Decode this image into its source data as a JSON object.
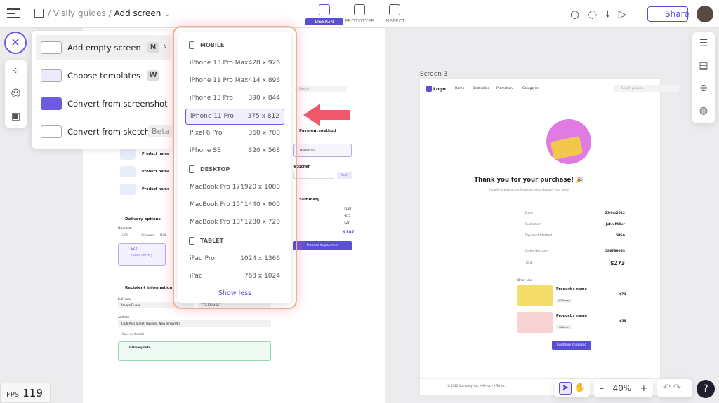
{
  "topbar": {
    "breadcrumb": [
      "Visily guides",
      "Add screen"
    ],
    "tabs": [
      {
        "label": "DESIGN",
        "active": true
      },
      {
        "label": "PROTOTYPE",
        "active": false
      },
      {
        "label": "INSPECT",
        "active": false
      }
    ],
    "share": "Share"
  },
  "add_menu": [
    {
      "label": "Add empty screen",
      "shortcut": "N",
      "highlighted": true
    },
    {
      "label": "Choose templates",
      "shortcut": "W"
    },
    {
      "label": "Convert from screenshot"
    },
    {
      "label": "Convert from sketch",
      "badge": "Beta"
    }
  ],
  "device_menu": {
    "sections": [
      {
        "title": "MOBILE",
        "items": [
          {
            "name": "iPhone 13 Pro Max",
            "size": "428 x 926"
          },
          {
            "name": "iPhone 11 Pro Max",
            "size": "414 x 896"
          },
          {
            "name": "iPhone 13 Pro",
            "size": "390 x 844"
          },
          {
            "name": "iPhone 11 Pro",
            "size": "375 x 812",
            "selected": true
          },
          {
            "name": "Pixel 6 Pro",
            "size": "360 x 780"
          },
          {
            "name": "iPhone SE",
            "size": "320 x 568"
          }
        ]
      },
      {
        "title": "DESKTOP",
        "items": [
          {
            "name": "MacBook Pro 17\"",
            "size": "1920 x 1080"
          },
          {
            "name": "MacBook Pro 15\"",
            "size": "1440 x 900"
          },
          {
            "name": "MacBook Pro 13\"",
            "size": "1280 x 720"
          }
        ]
      },
      {
        "title": "TABLET",
        "items": [
          {
            "name": "iPad Pro",
            "size": "1024 x 1366"
          },
          {
            "name": "iPad",
            "size": "768 x 1024"
          }
        ]
      }
    ],
    "toggle": "Show less"
  },
  "fps": {
    "label": "FPS",
    "value": "119"
  },
  "zoom": "40%",
  "left_screen": {
    "products": [
      "Product name",
      "Product name",
      "Product name"
    ],
    "delivery_title": "Delivery options",
    "operator": "Operator",
    "carriers": [
      "UPS",
      "Amazon",
      "DHL"
    ],
    "price": "$22",
    "speed": "Instant delivery",
    "recipient_title": "Recipient information",
    "full_name": "Full name",
    "name_value": "Amaya Dunne",
    "phone": "732-123-4567",
    "address": "Address",
    "address_value": "4706 Pass Street, Bayville, New Jersey(NJ)",
    "save": "Save as default",
    "note": "Delivery note"
  },
  "mid_screen": {
    "search": "Search",
    "payment": "Payment method",
    "card": "Mastercard",
    "voucher": "Voucher",
    "apply": "Apply",
    "summary": "Summary",
    "amounts": [
      "$180",
      "-$15",
      "$22"
    ],
    "total": "$187",
    "cta": "Proceed to payment"
  },
  "screen3": {
    "label": "Screen 3",
    "logo": "Logo",
    "nav": [
      "Home",
      "Best seller",
      "Promotion",
      "Categories"
    ],
    "search": "Search product...",
    "heading": "Thank you for your purchase! 🎉",
    "sub": "You will receive an confirmation letter through your email",
    "rows": [
      {
        "k": "Date",
        "v": "27/04/2022"
      },
      {
        "k": "Customer",
        "v": "John Miller"
      },
      {
        "k": "Payment Method",
        "v": "VISA"
      },
      {
        "k": "Order Number",
        "v": "586789963"
      },
      {
        "k": "Total",
        "v": "$273"
      }
    ],
    "order_line": "Order Line",
    "products": [
      {
        "name": "Product's name",
        "price": "$73",
        "tag": "+2 items"
      },
      {
        "name": "Product's name",
        "price": "$56",
        "tag": "+4 items"
      }
    ],
    "cta": "Continue shopping",
    "footer": "© 2022 Company, Inc. • Privacy • Terms"
  }
}
